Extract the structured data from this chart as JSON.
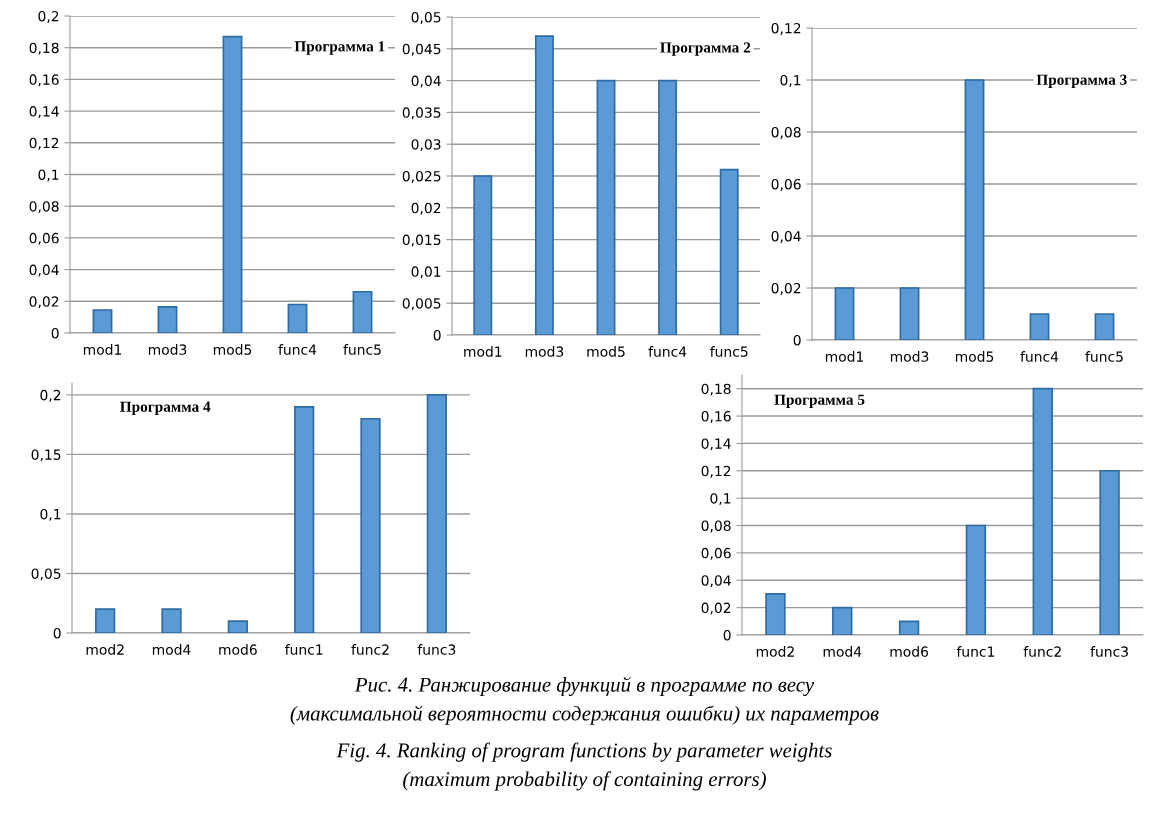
{
  "chart_data": [
    {
      "type": "bar",
      "title": "Программа 1",
      "categories": [
        "mod1",
        "mod3",
        "mod5",
        "func4",
        "func5"
      ],
      "values": [
        0.0145,
        0.0165,
        0.187,
        0.018,
        0.026
      ],
      "color": "#5b9bd5",
      "ylim": [
        0,
        0.2
      ],
      "yticks": [
        0,
        {
          "value": 0.02,
          "label": "0,02"
        },
        {
          "value": 0.04,
          "label": "0,04"
        },
        {
          "value": 0.06,
          "label": "0,06"
        },
        {
          "value": 0.08,
          "label": "0,08"
        },
        {
          "value": 0.1,
          "label": "0,1"
        },
        {
          "value": 0.12,
          "label": "0,12"
        },
        {
          "value": 0.14,
          "label": "0,14"
        },
        {
          "value": 0.16,
          "label": "0,16"
        },
        {
          "value": 0.18,
          "label": "0,18"
        },
        {
          "value": 0.2,
          "label": "0,2"
        }
      ],
      "grid": "y"
    },
    {
      "type": "bar",
      "title": "Программа 2",
      "categories": [
        "mod1",
        "mod3",
        "mod5",
        "func4",
        "func5"
      ],
      "values": [
        0.025,
        0.047,
        0.04,
        0.04,
        0.026
      ],
      "color": "#5b9bd5",
      "ylim": [
        0,
        0.05
      ],
      "yticks": [
        0,
        {
          "value": 0.005,
          "label": "0,005"
        },
        {
          "value": 0.01,
          "label": "0,01"
        },
        {
          "value": 0.015,
          "label": "0,015"
        },
        {
          "value": 0.02,
          "label": "0,02"
        },
        {
          "value": 0.025,
          "label": "0,025"
        },
        {
          "value": 0.03,
          "label": "0,03"
        },
        {
          "value": 0.035,
          "label": "0,035"
        },
        {
          "value": 0.04,
          "label": "0,04"
        },
        {
          "value": 0.045,
          "label": "0,045"
        },
        {
          "value": 0.05,
          "label": "0,05"
        }
      ],
      "grid": "y"
    },
    {
      "type": "bar",
      "title": "Программа 3",
      "categories": [
        "mod1",
        "mod3",
        "mod5",
        "func4",
        "func5"
      ],
      "values": [
        0.02,
        0.02,
        0.1,
        0.01,
        0.01
      ],
      "color": "#5b9bd5",
      "ylim": [
        0,
        0.12
      ],
      "yticks": [
        0,
        {
          "value": 0.02,
          "label": "0,02"
        },
        {
          "value": 0.04,
          "label": "0,04"
        },
        {
          "value": 0.06,
          "label": "0,06"
        },
        {
          "value": 0.08,
          "label": "0,08"
        },
        {
          "value": 0.1,
          "label": "0,1"
        },
        {
          "value": 0.12,
          "label": "0,12"
        }
      ],
      "grid": "y"
    },
    {
      "type": "bar",
      "title": "Программа 4",
      "categories": [
        "mod2",
        "mod4",
        "mod6",
        "func1",
        "func2",
        "func3"
      ],
      "values": [
        0.02,
        0.02,
        0.01,
        0.19,
        0.18,
        0.2
      ],
      "color": "#5b9bd5",
      "ylim": [
        0,
        0.21
      ],
      "yticks": [
        0,
        {
          "value": 0.05,
          "label": "0,05"
        },
        {
          "value": 0.1,
          "label": "0,1"
        },
        {
          "value": 0.15,
          "label": "0,15"
        },
        {
          "value": 0.2,
          "label": "0,2"
        }
      ],
      "grid": "y"
    },
    {
      "type": "bar",
      "title": "Программа 5",
      "categories": [
        "mod2",
        "mod4",
        "mod6",
        "func1",
        "func2",
        "func3"
      ],
      "values": [
        0.03,
        0.02,
        0.01,
        0.08,
        0.18,
        0.12
      ],
      "color": "#5b9bd5",
      "ylim": [
        0,
        0.19
      ],
      "yticks": [
        0,
        {
          "value": 0.02,
          "label": "0,02"
        },
        {
          "value": 0.04,
          "label": "0,04"
        },
        {
          "value": 0.06,
          "label": "0,06"
        },
        {
          "value": 0.08,
          "label": "0,08"
        },
        {
          "value": 0.1,
          "label": "0,1"
        },
        {
          "value": 0.12,
          "label": "0,12"
        },
        {
          "value": 0.14,
          "label": "0,14"
        },
        {
          "value": 0.16,
          "label": "0,16"
        },
        {
          "value": 0.18,
          "label": "0,18"
        }
      ],
      "grid": "y",
      "annotations": [
        "Рис. 4. Ранжирование функций в программе по весу",
        "(максимальной вероятности содержания ошибки) их параметров",
        "Fig. 4. Ranking of program functions by parameter weights",
        "(maximum probability of containing errors)"
      ]
    }
  ]
}
